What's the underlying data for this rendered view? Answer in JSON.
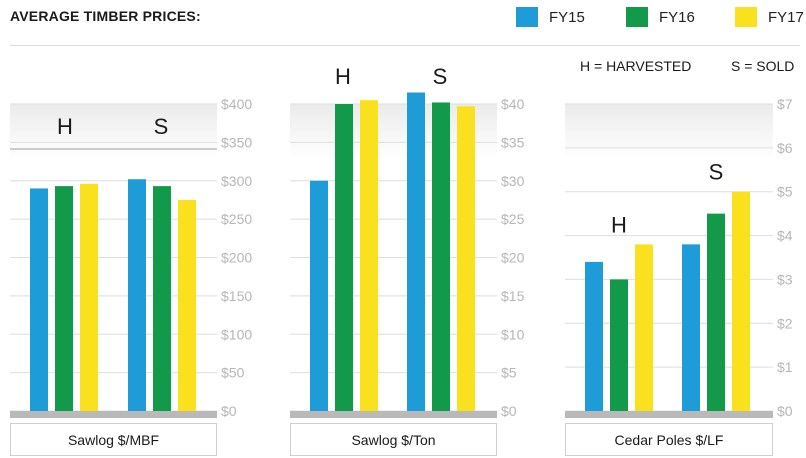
{
  "header": {
    "title": "AVERAGE TIMBER PRICES:"
  },
  "legend": {
    "items": [
      {
        "label": "FY15",
        "color": "#1e9cd7"
      },
      {
        "label": "FY16",
        "color": "#13994a"
      },
      {
        "label": "FY17",
        "color": "#f9e11e"
      }
    ]
  },
  "key": {
    "harvested": "H = HARVESTED",
    "sold": "S = SOLD"
  },
  "chart_data": [
    {
      "type": "bar",
      "xlabel": "Sawlog $/MBF",
      "ylim": [
        0,
        400
      ],
      "ticks": [
        "$0",
        "$50",
        "$100",
        "$150",
        "$200",
        "$250",
        "$300",
        "$350",
        "$400"
      ],
      "categories": [
        "H",
        "S"
      ],
      "series": [
        {
          "name": "FY15",
          "values": [
            290,
            302
          ]
        },
        {
          "name": "FY16",
          "values": [
            293,
            293
          ]
        },
        {
          "name": "FY17",
          "values": [
            296,
            275
          ]
        }
      ]
    },
    {
      "type": "bar",
      "xlabel": "Sawlog $/Ton",
      "ylim": [
        0,
        40
      ],
      "ticks": [
        "$0",
        "$5",
        "$10",
        "$15",
        "$20",
        "$25",
        "$30",
        "$35",
        "$40"
      ],
      "categories": [
        "H",
        "S"
      ],
      "series": [
        {
          "name": "FY15",
          "values": [
            30,
            41.5
          ]
        },
        {
          "name": "FY16",
          "values": [
            40,
            40.2
          ]
        },
        {
          "name": "FY17",
          "values": [
            40.5,
            39.7
          ]
        }
      ]
    },
    {
      "type": "bar",
      "xlabel": "Cedar Poles $/LF",
      "ylim": [
        0,
        7
      ],
      "ticks": [
        "$0",
        "$1",
        "$2",
        "$3",
        "$4",
        "$5",
        "$6",
        "$7"
      ],
      "categories": [
        "H",
        "S"
      ],
      "series": [
        {
          "name": "FY15",
          "values": [
            3.4,
            3.8
          ]
        },
        {
          "name": "FY16",
          "values": [
            3.0,
            4.5
          ]
        },
        {
          "name": "FY17",
          "values": [
            3.8,
            5.0
          ]
        }
      ]
    }
  ]
}
